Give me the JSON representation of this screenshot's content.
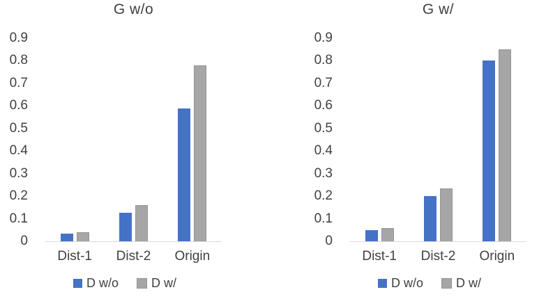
{
  "page": {
    "background": "#ffffff",
    "text_color": "#404040",
    "axis_line_color": "#d9d9d9"
  },
  "colors": {
    "series1": "#4472C4",
    "series2": "#A6A6A6"
  },
  "chart_data": [
    {
      "type": "bar",
      "title": "G w/o",
      "categories": [
        "Dist-1",
        "Dist-2",
        "Origin"
      ],
      "series": [
        {
          "name": "D w/o",
          "color": "#4472C4",
          "values": [
            0.035,
            0.125,
            0.59
          ]
        },
        {
          "name": "D w/",
          "color": "#A6A6A6",
          "values": [
            0.04,
            0.16,
            0.78
          ]
        }
      ],
      "xlabel": "",
      "ylabel": "",
      "ylim": [
        0,
        0.9
      ],
      "yticks": [
        "0.9",
        "0.8",
        "0.7",
        "0.6",
        "0.5",
        "0.4",
        "0.3",
        "0.2",
        "0.1",
        "0"
      ],
      "grid": false,
      "legend_position": "bottom"
    },
    {
      "type": "bar",
      "title": "G w/",
      "categories": [
        "Dist-1",
        "Dist-2",
        "Origin"
      ],
      "series": [
        {
          "name": "D w/o",
          "color": "#4472C4",
          "values": [
            0.05,
            0.2,
            0.8
          ]
        },
        {
          "name": "D w/",
          "color": "#A6A6A6",
          "values": [
            0.06,
            0.235,
            0.85
          ]
        }
      ],
      "xlabel": "",
      "ylabel": "",
      "ylim": [
        0,
        0.9
      ],
      "yticks": [
        "0.9",
        "0.8",
        "0.7",
        "0.6",
        "0.5",
        "0.4",
        "0.3",
        "0.2",
        "0.1",
        "0"
      ],
      "grid": false,
      "legend_position": "bottom"
    }
  ]
}
